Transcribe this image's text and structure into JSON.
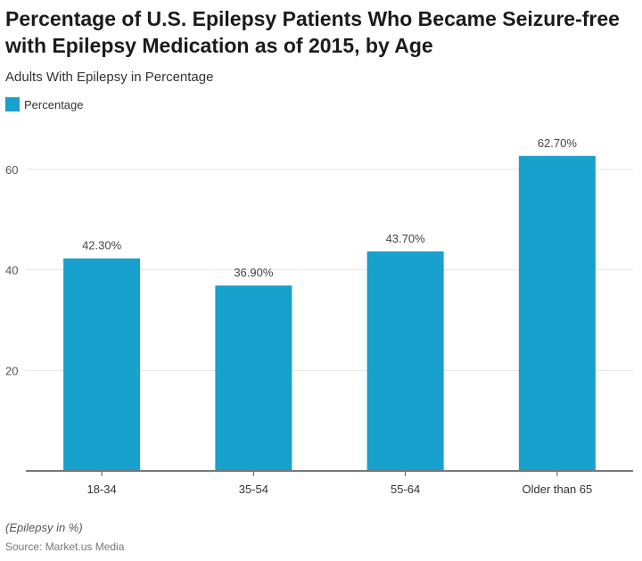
{
  "chart_data": {
    "type": "bar",
    "title": "Percentage of U.S. Epilepsy Patients Who Became Seizure-free with Epilepsy Medication as of 2015, by Age",
    "subtitle": "Adults With Epilepsy in Percentage",
    "legend": {
      "position": "top-left",
      "entries": [
        "Percentage"
      ]
    },
    "categories": [
      "18-34",
      "35-54",
      "55-64",
      "Older than 65"
    ],
    "series": [
      {
        "name": "Percentage",
        "values": [
          42.3,
          36.9,
          43.7,
          62.7
        ],
        "color": "#18a1cd"
      }
    ],
    "data_labels": [
      "42.30%",
      "36.90%",
      "43.70%",
      "62.70%"
    ],
    "yticks": [
      20,
      40,
      60
    ],
    "ylim": [
      0,
      60
    ],
    "grid": true,
    "note": "(Epilepsy in %)",
    "source": "Source: Market.us Media"
  }
}
